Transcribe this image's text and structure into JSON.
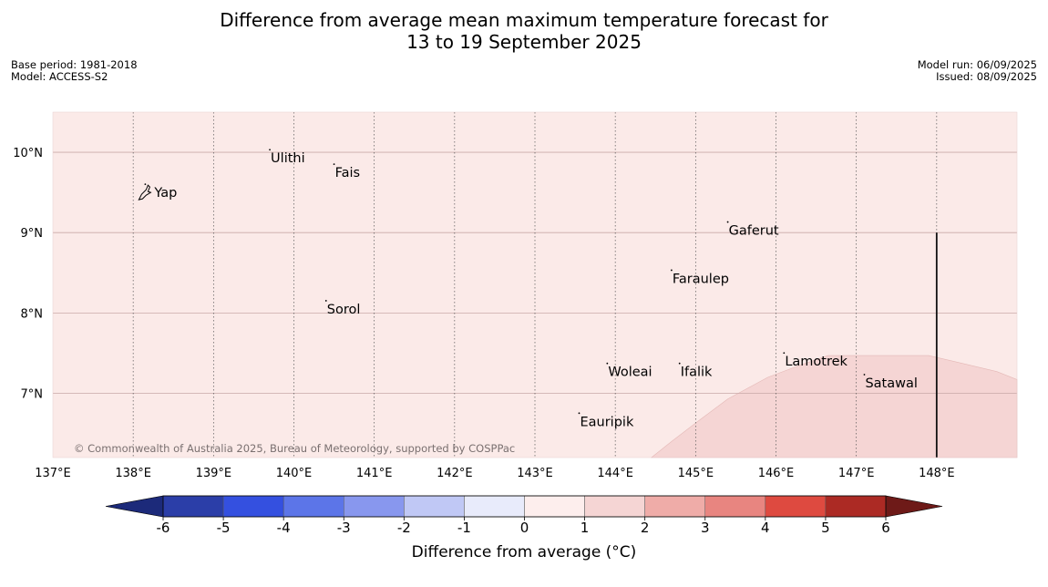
{
  "title": {
    "line1": "Difference from average mean maximum temperature forecast for",
    "line2": "13 to 19 September 2025"
  },
  "meta": {
    "base_period": "Base period: 1981-2018",
    "model": "Model: ACCESS-S2",
    "model_run": "Model run: 06/09/2025",
    "issued": "Issued: 08/09/2025"
  },
  "map": {
    "lon_range": [
      137,
      149
    ],
    "lat_range": [
      6.2,
      10.5
    ],
    "lon_ticks": [
      137,
      138,
      139,
      140,
      141,
      142,
      143,
      144,
      145,
      146,
      147,
      148
    ],
    "lon_tick_labels": [
      "137°E",
      "138°E",
      "139°E",
      "140°E",
      "141°E",
      "142°E",
      "143°E",
      "144°E",
      "145°E",
      "146°E",
      "147°E",
      "148°E"
    ],
    "lat_ticks": [
      7,
      8,
      9,
      10
    ],
    "lat_tick_labels": [
      "7°N",
      "8°N",
      "9°N",
      "10°N"
    ],
    "background_class_color": "#fbeae8",
    "warm_region_color": "#f5d5d4",
    "warm_region_polygon": [
      [
        144.45,
        6.2
      ],
      [
        144.7,
        6.4
      ],
      [
        145.0,
        6.63
      ],
      [
        145.4,
        6.93
      ],
      [
        145.9,
        7.2
      ],
      [
        146.3,
        7.35
      ],
      [
        146.65,
        7.47
      ],
      [
        147.0,
        7.47
      ],
      [
        147.9,
        7.47
      ],
      [
        148.2,
        7.4
      ],
      [
        148.75,
        7.27
      ],
      [
        149,
        7.17
      ],
      [
        149,
        6.2
      ]
    ],
    "boundary_line": {
      "lon": 148.0,
      "lat_from": 6.2,
      "lat_to": 9.0
    },
    "places": [
      {
        "name": "Yap",
        "lon": 138.15,
        "lat": 9.5
      },
      {
        "name": "Ulithi",
        "lon": 139.7,
        "lat": 9.93
      },
      {
        "name": "Fais",
        "lon": 140.5,
        "lat": 9.75
      },
      {
        "name": "Gaferut",
        "lon": 145.4,
        "lat": 9.03
      },
      {
        "name": "Faraulep",
        "lon": 144.7,
        "lat": 8.43
      },
      {
        "name": "Sorol",
        "lon": 140.4,
        "lat": 8.05
      },
      {
        "name": "Woleai",
        "lon": 143.9,
        "lat": 7.27
      },
      {
        "name": "Ifalik",
        "lon": 144.8,
        "lat": 7.27
      },
      {
        "name": "Lamotrek",
        "lon": 146.1,
        "lat": 7.4
      },
      {
        "name": "Satawal",
        "lon": 147.1,
        "lat": 7.13
      },
      {
        "name": "Eauripik",
        "lon": 143.55,
        "lat": 6.65
      }
    ],
    "copyright": "© Commonwealth of Australia 2025, Bureau of Meteorology, supported by COSPPac"
  },
  "colorbar": {
    "bins": [
      -6,
      -5,
      -4,
      -3,
      -2,
      -1,
      0,
      1,
      2,
      3,
      4,
      5,
      6
    ],
    "tick_labels": [
      "-6",
      "-5",
      "-4",
      "-3",
      "-2",
      "-1",
      "0",
      "1",
      "2",
      "3",
      "4",
      "5",
      "6"
    ],
    "colors": [
      "#2b3ea8",
      "#3450e0",
      "#5c75e8",
      "#8897ee",
      "#c0c8f5",
      "#e8ebfb",
      "#fdeeed",
      "#f5d5d4",
      "#efaca8",
      "#e88580",
      "#de4a40",
      "#ac2a24"
    ],
    "under_color": "#1c2a7a",
    "over_color": "#6e1a18",
    "label": "Difference from average (°C)"
  }
}
